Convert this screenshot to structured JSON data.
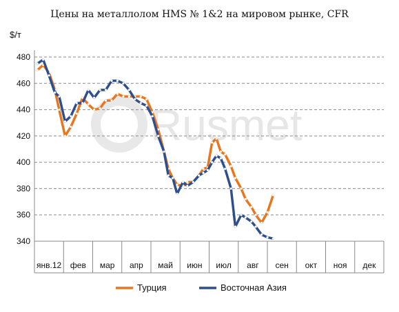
{
  "chart_data": {
    "type": "line",
    "title": "Цены на металлолом HMS № 1&2 на мировом рынке, CFR",
    "ylabel": "$/т",
    "ylim": [
      340,
      480
    ],
    "yticks": [
      340,
      360,
      380,
      400,
      420,
      440,
      460,
      480
    ],
    "categories": [
      "янв.12",
      "фев",
      "мар",
      "апр",
      "май",
      "июн",
      "июл",
      "авг",
      "сен",
      "окт",
      "ноя",
      "дек"
    ],
    "grid": true,
    "legend_position": "bottom",
    "watermark": "Rusmet",
    "series": [
      {
        "name": "Турция",
        "color": "#E8761E",
        "points": [
          [
            0.1,
            470
          ],
          [
            0.3,
            474
          ],
          [
            0.5,
            468
          ],
          [
            0.7,
            455
          ],
          [
            0.85,
            440
          ],
          [
            1.05,
            420
          ],
          [
            1.25,
            427
          ],
          [
            1.45,
            437
          ],
          [
            1.65,
            449
          ],
          [
            1.85,
            444
          ],
          [
            2.05,
            440
          ],
          [
            2.25,
            441
          ],
          [
            2.45,
            447
          ],
          [
            2.65,
            447
          ],
          [
            2.85,
            452
          ],
          [
            3.05,
            450
          ],
          [
            3.25,
            450
          ],
          [
            3.45,
            450
          ],
          [
            3.65,
            450
          ],
          [
            3.85,
            448
          ],
          [
            4.05,
            438
          ],
          [
            4.25,
            425
          ],
          [
            4.45,
            408
          ],
          [
            4.6,
            395
          ],
          [
            4.75,
            388
          ],
          [
            4.9,
            383
          ],
          [
            5.1,
            382
          ],
          [
            5.25,
            385
          ],
          [
            5.45,
            385
          ],
          [
            5.65,
            390
          ],
          [
            5.8,
            395
          ],
          [
            5.95,
            396
          ],
          [
            6.1,
            415
          ],
          [
            6.25,
            418
          ],
          [
            6.4,
            408
          ],
          [
            6.55,
            406
          ],
          [
            6.75,
            397
          ],
          [
            6.9,
            388
          ],
          [
            7.1,
            380
          ],
          [
            7.25,
            372
          ],
          [
            7.45,
            366
          ],
          [
            7.6,
            360
          ],
          [
            7.8,
            354
          ],
          [
            8.0,
            362
          ],
          [
            8.2,
            375
          ]
        ]
      },
      {
        "name": "Восточная Азия",
        "color": "#2E4F8E",
        "points": [
          [
            0.1,
            475
          ],
          [
            0.3,
            478
          ],
          [
            0.5,
            466
          ],
          [
            0.7,
            453
          ],
          [
            0.85,
            450
          ],
          [
            1.05,
            431
          ],
          [
            1.25,
            435
          ],
          [
            1.45,
            445
          ],
          [
            1.65,
            445
          ],
          [
            1.85,
            455
          ],
          [
            2.05,
            449
          ],
          [
            2.25,
            455
          ],
          [
            2.45,
            455
          ],
          [
            2.65,
            462
          ],
          [
            2.85,
            462
          ],
          [
            3.05,
            460
          ],
          [
            3.25,
            455
          ],
          [
            3.45,
            448
          ],
          [
            3.65,
            445
          ],
          [
            3.85,
            443
          ],
          [
            4.05,
            435
          ],
          [
            4.25,
            420
          ],
          [
            4.45,
            408
          ],
          [
            4.6,
            390
          ],
          [
            4.75,
            388
          ],
          [
            4.9,
            376
          ],
          [
            5.1,
            385
          ],
          [
            5.25,
            382
          ],
          [
            5.45,
            385
          ],
          [
            5.65,
            390
          ],
          [
            5.8,
            392
          ],
          [
            5.95,
            394
          ],
          [
            6.1,
            400
          ],
          [
            6.25,
            405
          ],
          [
            6.4,
            403
          ],
          [
            6.55,
            395
          ],
          [
            6.75,
            380
          ],
          [
            6.9,
            351
          ],
          [
            7.1,
            360
          ],
          [
            7.25,
            358
          ],
          [
            7.45,
            355
          ],
          [
            7.6,
            351
          ],
          [
            7.8,
            345
          ],
          [
            8.0,
            343
          ],
          [
            8.2,
            342
          ]
        ]
      }
    ]
  }
}
